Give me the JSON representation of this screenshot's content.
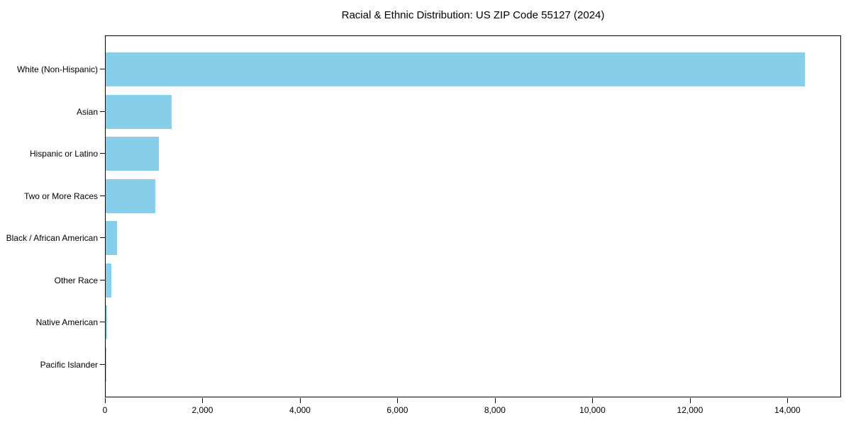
{
  "figure": {
    "background_color": "#FFFFFF",
    "axis_color": "#000000"
  },
  "chart_data": {
    "type": "bar",
    "orientation": "horizontal",
    "title": "Racial & Ethnic Distribution: US ZIP Code 55127 (2024)",
    "xlabel": "",
    "ylabel": "",
    "categories": [
      "White (Non-Hispanic)",
      "Asian",
      "Hispanic or Latino",
      "Two or More Races",
      "Black / African American",
      "Other Race",
      "Native American",
      "Pacific Islander"
    ],
    "values": [
      14340,
      1350,
      1090,
      1020,
      230,
      115,
      30,
      10
    ],
    "bar_color": "#87CEEB",
    "xlim": [
      0,
      15100
    ],
    "xticks": [
      0,
      2000,
      4000,
      6000,
      8000,
      10000,
      12000,
      14000
    ],
    "xtick_labels": [
      "0",
      "2,000",
      "4,000",
      "6,000",
      "8,000",
      "10,000",
      "12,000",
      "14,000"
    ],
    "grid": false,
    "legend": null
  }
}
